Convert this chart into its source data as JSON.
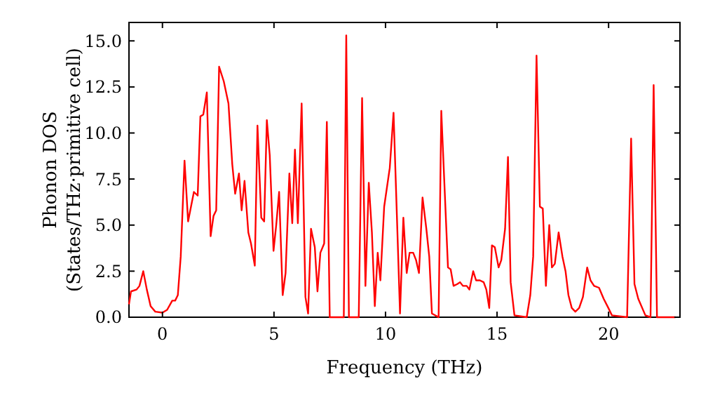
{
  "chart_data": {
    "type": "line",
    "xlabel": "Frequency (THz)",
    "ylabel": "Phonon DOS\n(States/THz·primitive cell)",
    "x": [
      -1.5,
      -1.41,
      -1.16,
      -1.03,
      -0.86,
      -0.7,
      -0.53,
      -0.32,
      0,
      0.21,
      0.44,
      0.57,
      0.69,
      0.82,
      0.99,
      1.15,
      1.28,
      1.41,
      1.58,
      1.7,
      1.83,
      1.99,
      2.16,
      2.29,
      2.41,
      2.54,
      2.75,
      2.96,
      3.13,
      3.26,
      3.43,
      3.55,
      3.68,
      3.85,
      3.97,
      4.14,
      4.26,
      4.43,
      4.56,
      4.68,
      4.81,
      4.98,
      5.1,
      5.23,
      5.39,
      5.52,
      5.69,
      5.82,
      5.94,
      6.07,
      6.24,
      6.41,
      6.53,
      6.66,
      6.83,
      6.95,
      7.08,
      7.25,
      7.37,
      7.5,
      8.13,
      8.24,
      8.36,
      8.8,
      8.95,
      9.1,
      9.25,
      9.39,
      9.52,
      9.65,
      9.77,
      9.94,
      10.19,
      10.36,
      10.51,
      10.65,
      10.8,
      10.95,
      11.08,
      11.24,
      11.37,
      11.5,
      11.66,
      11.83,
      11.96,
      12.08,
      12.38,
      12.5,
      12.8,
      12.92,
      13.05,
      13.22,
      13.34,
      13.47,
      13.64,
      13.76,
      13.93,
      14.06,
      14.23,
      14.4,
      14.52,
      14.65,
      14.77,
      14.9,
      15.07,
      15.19,
      15.36,
      15.49,
      15.61,
      15.78,
      16.33,
      16.49,
      16.62,
      16.77,
      16.92,
      17.05,
      17.19,
      17.34,
      17.46,
      17.59,
      17.76,
      17.93,
      18.07,
      18.2,
      18.35,
      18.51,
      18.68,
      18.85,
      19.04,
      19.19,
      19.35,
      19.57,
      19.78,
      19.99,
      20.15,
      20.83,
      21.01,
      21.16,
      21.33,
      21.65,
      21.88,
      22.02,
      22.17,
      23.0
    ],
    "series": [
      {
        "color": "#ff0000",
        "values": [
          0.7,
          1.4,
          1.5,
          1.7,
          2.5,
          1.5,
          0.6,
          0.3,
          0.25,
          0.4,
          0.9,
          0.9,
          1.2,
          3.3,
          8.5,
          5.2,
          6.0,
          6.8,
          6.6,
          10.9,
          11.0,
          12.2,
          4.4,
          5.5,
          5.8,
          13.6,
          12.8,
          11.6,
          8.3,
          6.7,
          7.8,
          5.8,
          7.4,
          4.6,
          4.0,
          2.8,
          10.4,
          5.4,
          5.2,
          10.7,
          8.8,
          3.6,
          5.0,
          6.8,
          1.2,
          2.4,
          7.8,
          5.1,
          9.1,
          5.1,
          11.6,
          1.1,
          0.2,
          4.8,
          3.8,
          1.4,
          3.5,
          4.0,
          10.6,
          0,
          0,
          15.3,
          0,
          0,
          11.9,
          1.7,
          7.3,
          4.6,
          0.6,
          3.5,
          2.0,
          6.0,
          8.1,
          11.1,
          5.5,
          0.2,
          5.4,
          2.4,
          3.5,
          3.5,
          3.1,
          2.4,
          6.5,
          4.8,
          3.3,
          0.2,
          0,
          11.2,
          2.7,
          2.6,
          1.7,
          1.8,
          1.9,
          1.7,
          1.7,
          1.5,
          2.5,
          2.0,
          2.0,
          1.9,
          1.5,
          0.5,
          3.9,
          3.8,
          2.7,
          3.1,
          4.8,
          8.7,
          1.9,
          0.1,
          0,
          1.2,
          3.3,
          14.2,
          6.0,
          5.9,
          1.7,
          5.0,
          2.7,
          2.9,
          4.6,
          3.3,
          2.5,
          1.2,
          0.5,
          0.3,
          0.5,
          1.1,
          2.7,
          2.0,
          1.7,
          1.6,
          1.0,
          0.5,
          0.1,
          0,
          9.7,
          1.8,
          1.0,
          0.1,
          0,
          12.6,
          0,
          0
        ]
      }
    ],
    "xlim": [
      -1.5,
      23.2
    ],
    "ylim": [
      0,
      16
    ],
    "xticks": [
      0,
      5,
      10,
      15,
      20
    ],
    "yticks": [
      {
        "value": 0,
        "label": "0.0"
      },
      {
        "value": 2.5,
        "label": "2.5"
      },
      {
        "value": 5,
        "label": "5.0"
      },
      {
        "value": 7.5,
        "label": "7.5"
      },
      {
        "value": 10,
        "label": "10.0"
      },
      {
        "value": 12.5,
        "label": "12.5"
      },
      {
        "value": 15,
        "label": "15.0"
      }
    ],
    "grid": false,
    "marker": "none",
    "line_style": "solid"
  }
}
